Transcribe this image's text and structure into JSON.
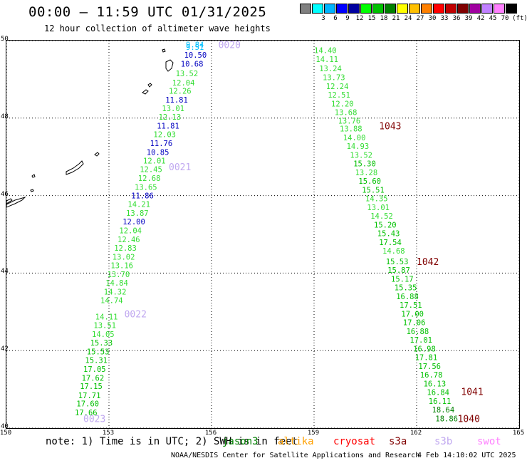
{
  "title": "00:00 – 11:59 UTC 01/31/2025",
  "subtitle": "12 hour collection of altimeter wave heights",
  "colorbar": {
    "unit": "(ft)",
    "bins": [
      {
        "label": "",
        "color": "#808080"
      },
      {
        "label": "3",
        "color": "#00ffff"
      },
      {
        "label": "6",
        "color": "#00b4ff"
      },
      {
        "label": "9",
        "color": "#0000ff"
      },
      {
        "label": "12",
        "color": "#0000a0"
      },
      {
        "label": "15",
        "color": "#00ff00"
      },
      {
        "label": "18",
        "color": "#00c000"
      },
      {
        "label": "21",
        "color": "#008000"
      },
      {
        "label": "24",
        "color": "#ffff00"
      },
      {
        "label": "27",
        "color": "#ffc000"
      },
      {
        "label": "30",
        "color": "#ff8000"
      },
      {
        "label": "33",
        "color": "#ff0000"
      },
      {
        "label": "36",
        "color": "#c00000"
      },
      {
        "label": "39",
        "color": "#800000"
      },
      {
        "label": "42",
        "color": "#a000a0"
      },
      {
        "label": "45",
        "color": "#c080ff"
      },
      {
        "label": "70",
        "color": "#ff80ff"
      },
      {
        "label": "",
        "color": "#000000"
      }
    ]
  },
  "axes": {
    "x_ticks": [
      "150",
      "153",
      "156",
      "159",
      "162",
      "165"
    ],
    "y_ticks": [
      "50",
      "48",
      "46",
      "44",
      "42",
      "40"
    ],
    "lon_range": [
      150,
      165
    ],
    "lat_range": [
      40,
      50
    ]
  },
  "tracks": {
    "west": {
      "cycle_labels": [
        {
          "text": "0020",
          "lon": 156.2,
          "lat": 49.9,
          "color": "#c0a8f0"
        },
        {
          "text": "0021",
          "lon": 154.75,
          "lat": 46.75,
          "color": "#c0a8f0"
        },
        {
          "text": "0022",
          "lon": 153.45,
          "lat": 42.95,
          "color": "#c0a8f0"
        },
        {
          "text": "0023",
          "lon": 152.25,
          "lat": 40.25,
          "color": "#c0a8f0"
        }
      ],
      "values": [
        {
          "text": "9.84",
          "lon": 155.25,
          "lat": 49.9,
          "color": "#00c0ff"
        },
        {
          "text": "9.51",
          "lon": 155.25,
          "lat": 49.83,
          "color": "#00c0ff"
        },
        {
          "text": "10.50",
          "lon": 155.2,
          "lat": 49.63,
          "color": "#0000c0"
        },
        {
          "text": "10.68",
          "lon": 155.1,
          "lat": 49.4,
          "color": "#0000c0"
        },
        {
          "text": "13.52",
          "lon": 154.95,
          "lat": 49.15,
          "color": "#33dd33"
        },
        {
          "text": "12.04",
          "lon": 154.85,
          "lat": 48.92,
          "color": "#33dd33"
        },
        {
          "text": "12.26",
          "lon": 154.75,
          "lat": 48.7,
          "color": "#33dd33"
        },
        {
          "text": "11.81",
          "lon": 154.65,
          "lat": 48.47,
          "color": "#0000c0"
        },
        {
          "text": "13.01",
          "lon": 154.55,
          "lat": 48.25,
          "color": "#33dd33"
        },
        {
          "text": "12.13",
          "lon": 154.45,
          "lat": 48.03,
          "color": "#33dd33"
        },
        {
          "text": "11.81",
          "lon": 154.4,
          "lat": 47.8,
          "color": "#0000c0"
        },
        {
          "text": "12.03",
          "lon": 154.3,
          "lat": 47.58,
          "color": "#33dd33"
        },
        {
          "text": "11.76",
          "lon": 154.2,
          "lat": 47.35,
          "color": "#0000c0"
        },
        {
          "text": "10.85",
          "lon": 154.1,
          "lat": 47.12,
          "color": "#0000c0"
        },
        {
          "text": "12.01",
          "lon": 154.0,
          "lat": 46.9,
          "color": "#33dd33"
        },
        {
          "text": "12.45",
          "lon": 153.9,
          "lat": 46.68,
          "color": "#33dd33"
        },
        {
          "text": "12.68",
          "lon": 153.85,
          "lat": 46.45,
          "color": "#33dd33"
        },
        {
          "text": "13.65",
          "lon": 153.75,
          "lat": 46.22,
          "color": "#33dd33"
        },
        {
          "text": "11.86",
          "lon": 153.65,
          "lat": 46.0,
          "color": "#0000c0"
        },
        {
          "text": "14.21",
          "lon": 153.55,
          "lat": 45.78,
          "color": "#33dd33"
        },
        {
          "text": "13.87",
          "lon": 153.5,
          "lat": 45.55,
          "color": "#33dd33"
        },
        {
          "text": "12.00",
          "lon": 153.4,
          "lat": 45.33,
          "color": "#0000c0"
        },
        {
          "text": "12.04",
          "lon": 153.3,
          "lat": 45.1,
          "color": "#33dd33"
        },
        {
          "text": "12.46",
          "lon": 153.25,
          "lat": 44.87,
          "color": "#33dd33"
        },
        {
          "text": "12.83",
          "lon": 153.15,
          "lat": 44.65,
          "color": "#33dd33"
        },
        {
          "text": "13.02",
          "lon": 153.1,
          "lat": 44.42,
          "color": "#33dd33"
        },
        {
          "text": "13.16",
          "lon": 153.05,
          "lat": 44.2,
          "color": "#33dd33"
        },
        {
          "text": "13.70",
          "lon": 152.95,
          "lat": 43.97,
          "color": "#33dd33"
        },
        {
          "text": "14.84",
          "lon": 152.9,
          "lat": 43.75,
          "color": "#33dd33"
        },
        {
          "text": "14.32",
          "lon": 152.85,
          "lat": 43.52,
          "color": "#33dd33"
        },
        {
          "text": "14.74",
          "lon": 152.75,
          "lat": 43.3,
          "color": "#33dd33"
        },
        {
          "text": "14.11",
          "lon": 152.6,
          "lat": 42.88,
          "color": "#33dd33"
        },
        {
          "text": "13.51",
          "lon": 152.55,
          "lat": 42.66,
          "color": "#33dd33"
        },
        {
          "text": "14.05",
          "lon": 152.5,
          "lat": 42.43,
          "color": "#33dd33"
        },
        {
          "text": "15.33",
          "lon": 152.45,
          "lat": 42.21,
          "color": "#00c000"
        },
        {
          "text": "15.53",
          "lon": 152.35,
          "lat": 41.98,
          "color": "#00c000"
        },
        {
          "text": "15.31",
          "lon": 152.3,
          "lat": 41.76,
          "color": "#00c000"
        },
        {
          "text": "17.05",
          "lon": 152.25,
          "lat": 41.53,
          "color": "#00c000"
        },
        {
          "text": "17.62",
          "lon": 152.2,
          "lat": 41.3,
          "color": "#00c000"
        },
        {
          "text": "17.15",
          "lon": 152.15,
          "lat": 41.08,
          "color": "#00c000"
        },
        {
          "text": "17.71",
          "lon": 152.1,
          "lat": 40.85,
          "color": "#00c000"
        },
        {
          "text": "17.60",
          "lon": 152.05,
          "lat": 40.63,
          "color": "#00c000"
        },
        {
          "text": "17.66",
          "lon": 152.0,
          "lat": 40.4,
          "color": "#00c000"
        }
      ]
    },
    "east": {
      "cycle_labels": [
        {
          "text": "1043",
          "lon": 160.9,
          "lat": 47.8,
          "color": "#800000"
        },
        {
          "text": "1042",
          "lon": 162.0,
          "lat": 44.3,
          "color": "#800000"
        },
        {
          "text": "1041",
          "lon": 163.3,
          "lat": 40.95,
          "color": "#800000"
        },
        {
          "text": "1040",
          "lon": 163.2,
          "lat": 40.25,
          "color": "#800000"
        }
      ],
      "values": [
        {
          "text": "14.40",
          "lon": 159.0,
          "lat": 49.75,
          "color": "#33dd33"
        },
        {
          "text": "14.11",
          "lon": 159.05,
          "lat": 49.52,
          "color": "#33dd33"
        },
        {
          "text": "13.24",
          "lon": 159.15,
          "lat": 49.28,
          "color": "#33dd33"
        },
        {
          "text": "13.73",
          "lon": 159.25,
          "lat": 49.05,
          "color": "#33dd33"
        },
        {
          "text": "12.24",
          "lon": 159.35,
          "lat": 48.82,
          "color": "#33dd33"
        },
        {
          "text": "12.51",
          "lon": 159.4,
          "lat": 48.6,
          "color": "#33dd33"
        },
        {
          "text": "12.20",
          "lon": 159.5,
          "lat": 48.37,
          "color": "#33dd33"
        },
        {
          "text": "13.68",
          "lon": 159.6,
          "lat": 48.15,
          "color": "#33dd33"
        },
        {
          "text": "13.76",
          "lon": 159.7,
          "lat": 47.93,
          "color": "#33dd33"
        },
        {
          "text": "13.88",
          "lon": 159.75,
          "lat": 47.73,
          "color": "#33dd33"
        },
        {
          "text": "14.00",
          "lon": 159.85,
          "lat": 47.5,
          "color": "#33dd33"
        },
        {
          "text": "14.93",
          "lon": 159.95,
          "lat": 47.28,
          "color": "#33dd33"
        },
        {
          "text": "13.52",
          "lon": 160.05,
          "lat": 47.05,
          "color": "#33dd33"
        },
        {
          "text": "15.30",
          "lon": 160.15,
          "lat": 46.83,
          "color": "#00c000"
        },
        {
          "text": "13.28",
          "lon": 160.2,
          "lat": 46.6,
          "color": "#33dd33"
        },
        {
          "text": "15.60",
          "lon": 160.3,
          "lat": 46.38,
          "color": "#00c000"
        },
        {
          "text": "15.51",
          "lon": 160.4,
          "lat": 46.15,
          "color": "#00c000"
        },
        {
          "text": "14.35",
          "lon": 160.5,
          "lat": 45.93,
          "color": "#33dd33"
        },
        {
          "text": "13.01",
          "lon": 160.55,
          "lat": 45.7,
          "color": "#33dd33"
        },
        {
          "text": "14.52",
          "lon": 160.65,
          "lat": 45.48,
          "color": "#33dd33"
        },
        {
          "text": "15.20",
          "lon": 160.75,
          "lat": 45.25,
          "color": "#00c000"
        },
        {
          "text": "15.43",
          "lon": 160.85,
          "lat": 45.03,
          "color": "#00c000"
        },
        {
          "text": "17.54",
          "lon": 160.9,
          "lat": 44.8,
          "color": "#00c000"
        },
        {
          "text": "14.68",
          "lon": 161.0,
          "lat": 44.58,
          "color": "#33dd33"
        },
        {
          "text": "15.53",
          "lon": 161.1,
          "lat": 44.3,
          "color": "#00c000"
        },
        {
          "text": "15.87",
          "lon": 161.15,
          "lat": 44.08,
          "color": "#00c000"
        },
        {
          "text": "15.17",
          "lon": 161.25,
          "lat": 43.85,
          "color": "#00c000"
        },
        {
          "text": "15.35",
          "lon": 161.35,
          "lat": 43.63,
          "color": "#00c000"
        },
        {
          "text": "16.88",
          "lon": 161.4,
          "lat": 43.4,
          "color": "#00c000"
        },
        {
          "text": "17.51",
          "lon": 161.5,
          "lat": 43.18,
          "color": "#00c000"
        },
        {
          "text": "17.00",
          "lon": 161.55,
          "lat": 42.95,
          "color": "#00c000"
        },
        {
          "text": "17.06",
          "lon": 161.6,
          "lat": 42.73,
          "color": "#00c000"
        },
        {
          "text": "16.88",
          "lon": 161.7,
          "lat": 42.5,
          "color": "#00c000"
        },
        {
          "text": "17.01",
          "lon": 161.8,
          "lat": 42.28,
          "color": "#00c000"
        },
        {
          "text": "16.98",
          "lon": 161.9,
          "lat": 42.05,
          "color": "#00c000"
        },
        {
          "text": "17.81",
          "lon": 161.95,
          "lat": 41.83,
          "color": "#00c000"
        },
        {
          "text": "17.56",
          "lon": 162.05,
          "lat": 41.6,
          "color": "#00c000"
        },
        {
          "text": "16.78",
          "lon": 162.1,
          "lat": 41.38,
          "color": "#00c000"
        },
        {
          "text": "16.13",
          "lon": 162.2,
          "lat": 41.15,
          "color": "#00c000"
        },
        {
          "text": "16.84",
          "lon": 162.3,
          "lat": 40.93,
          "color": "#00c000"
        },
        {
          "text": "16.11",
          "lon": 162.35,
          "lat": 40.7,
          "color": "#00c000"
        },
        {
          "text": "18.64",
          "lon": 162.45,
          "lat": 40.48,
          "color": "#008000"
        },
        {
          "text": "18.86",
          "lon": 162.55,
          "lat": 40.25,
          "color": "#008000"
        }
      ]
    }
  },
  "note": "note: 1) Time is in UTC; 2) SWH is in feet",
  "satellites": [
    {
      "name": "jason3",
      "color": "#008000"
    },
    {
      "name": "altika",
      "color": "#ffa000"
    },
    {
      "name": "cryosat",
      "color": "#ff0000"
    },
    {
      "name": "s3a",
      "color": "#800000"
    },
    {
      "name": "s3b",
      "color": "#c0a8f0"
    },
    {
      "name": "swot",
      "color": "#ff80ff"
    }
  ],
  "footer": "NOAA/NESDIS Center for Satellite Applications and Research",
  "timestamp": "4 Feb 14:10:02 UTC 2025"
}
